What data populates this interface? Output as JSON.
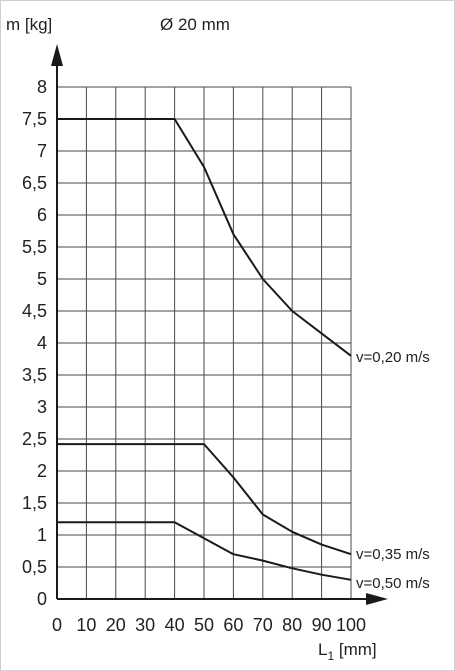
{
  "header": {
    "ylabel": "m [kg]",
    "subtitle": "Ø 20 mm"
  },
  "xlabel": {
    "main": "L",
    "sub": "1",
    "unit": " [mm]"
  },
  "chart_data": {
    "type": "line",
    "title": "",
    "subtitle": "Ø 20 mm",
    "xlabel": "L1 [mm]",
    "ylabel": "m [kg]",
    "xlim": [
      0,
      100
    ],
    "ylim": [
      0,
      8
    ],
    "grid": true,
    "x_ticks": [
      "0",
      "10",
      "20",
      "30",
      "40",
      "50",
      "60",
      "70",
      "80",
      "90",
      "100"
    ],
    "y_ticks": [
      "0",
      "0,5",
      "1",
      "1,5",
      "2",
      "2,5",
      "3",
      "3,5",
      "4",
      "4,5",
      "5",
      "5,5",
      "6",
      "6,5",
      "7",
      "7,5",
      "8"
    ],
    "series": [
      {
        "name": "v=0,20 m/s",
        "x": [
          0,
          40,
          50,
          60,
          70,
          80,
          90,
          100
        ],
        "y": [
          7.5,
          7.5,
          6.75,
          5.7,
          5.0,
          4.5,
          4.15,
          3.8
        ]
      },
      {
        "name": "v=0,35 m/s",
        "x": [
          0,
          50,
          60,
          70,
          80,
          90,
          100
        ],
        "y": [
          2.42,
          2.42,
          1.9,
          1.32,
          1.05,
          0.85,
          0.7
        ]
      },
      {
        "name": "v=0,50 m/s",
        "x": [
          0,
          40,
          50,
          60,
          70,
          80,
          90,
          100
        ],
        "y": [
          1.2,
          1.2,
          0.95,
          0.7,
          0.6,
          0.48,
          0.38,
          0.3
        ]
      }
    ],
    "line_color": "#1a1a1a",
    "grid_color": "#4a4a4a"
  }
}
